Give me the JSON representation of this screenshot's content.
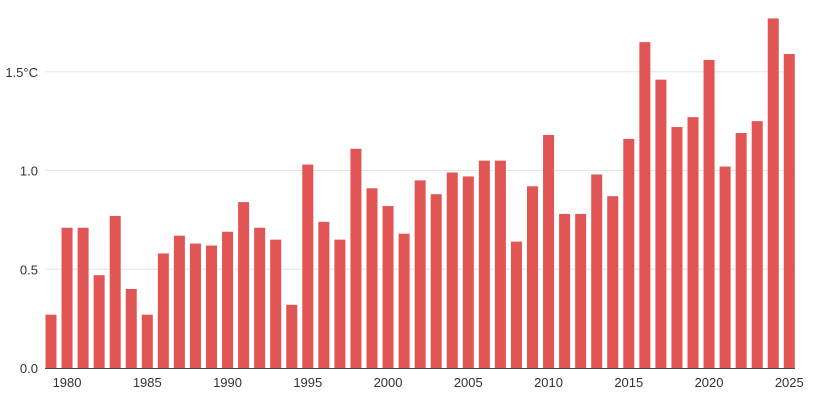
{
  "chart_data": {
    "type": "bar",
    "title": "",
    "xlabel": "",
    "ylabel": "",
    "bar_color": "#e15555",
    "grid": true,
    "legend": "none",
    "ylim": [
      0,
      1.8
    ],
    "y_ticks": [
      {
        "value": 0,
        "label": "0.0"
      },
      {
        "value": 0.5,
        "label": "0.5"
      },
      {
        "value": 1.0,
        "label": "1.0"
      },
      {
        "value": 1.5,
        "label": "1.5°C"
      }
    ],
    "x_ticks": [
      "1980",
      "1985",
      "1990",
      "1995",
      "2000",
      "2005",
      "2010",
      "2015",
      "2020",
      "2025"
    ],
    "categories": [
      1979,
      1980,
      1981,
      1982,
      1983,
      1984,
      1985,
      1986,
      1987,
      1988,
      1989,
      1990,
      1991,
      1992,
      1993,
      1994,
      1995,
      1996,
      1997,
      1998,
      1999,
      2000,
      2001,
      2002,
      2003,
      2004,
      2005,
      2006,
      2007,
      2008,
      2009,
      2010,
      2011,
      2012,
      2013,
      2014,
      2015,
      2016,
      2017,
      2018,
      2019,
      2020,
      2021,
      2022,
      2023,
      2024,
      2025
    ],
    "values": [
      0.27,
      0.71,
      0.71,
      0.47,
      0.77,
      0.4,
      0.27,
      0.58,
      0.67,
      0.63,
      0.62,
      0.69,
      0.84,
      0.71,
      0.65,
      0.32,
      1.03,
      0.74,
      0.65,
      1.11,
      0.91,
      0.82,
      0.68,
      0.95,
      0.88,
      0.99,
      0.97,
      1.05,
      1.05,
      0.64,
      0.92,
      1.18,
      0.78,
      0.78,
      0.98,
      0.87,
      1.16,
      1.65,
      1.46,
      1.22,
      1.27,
      1.56,
      1.02,
      1.19,
      1.25,
      1.77,
      1.59
    ]
  }
}
